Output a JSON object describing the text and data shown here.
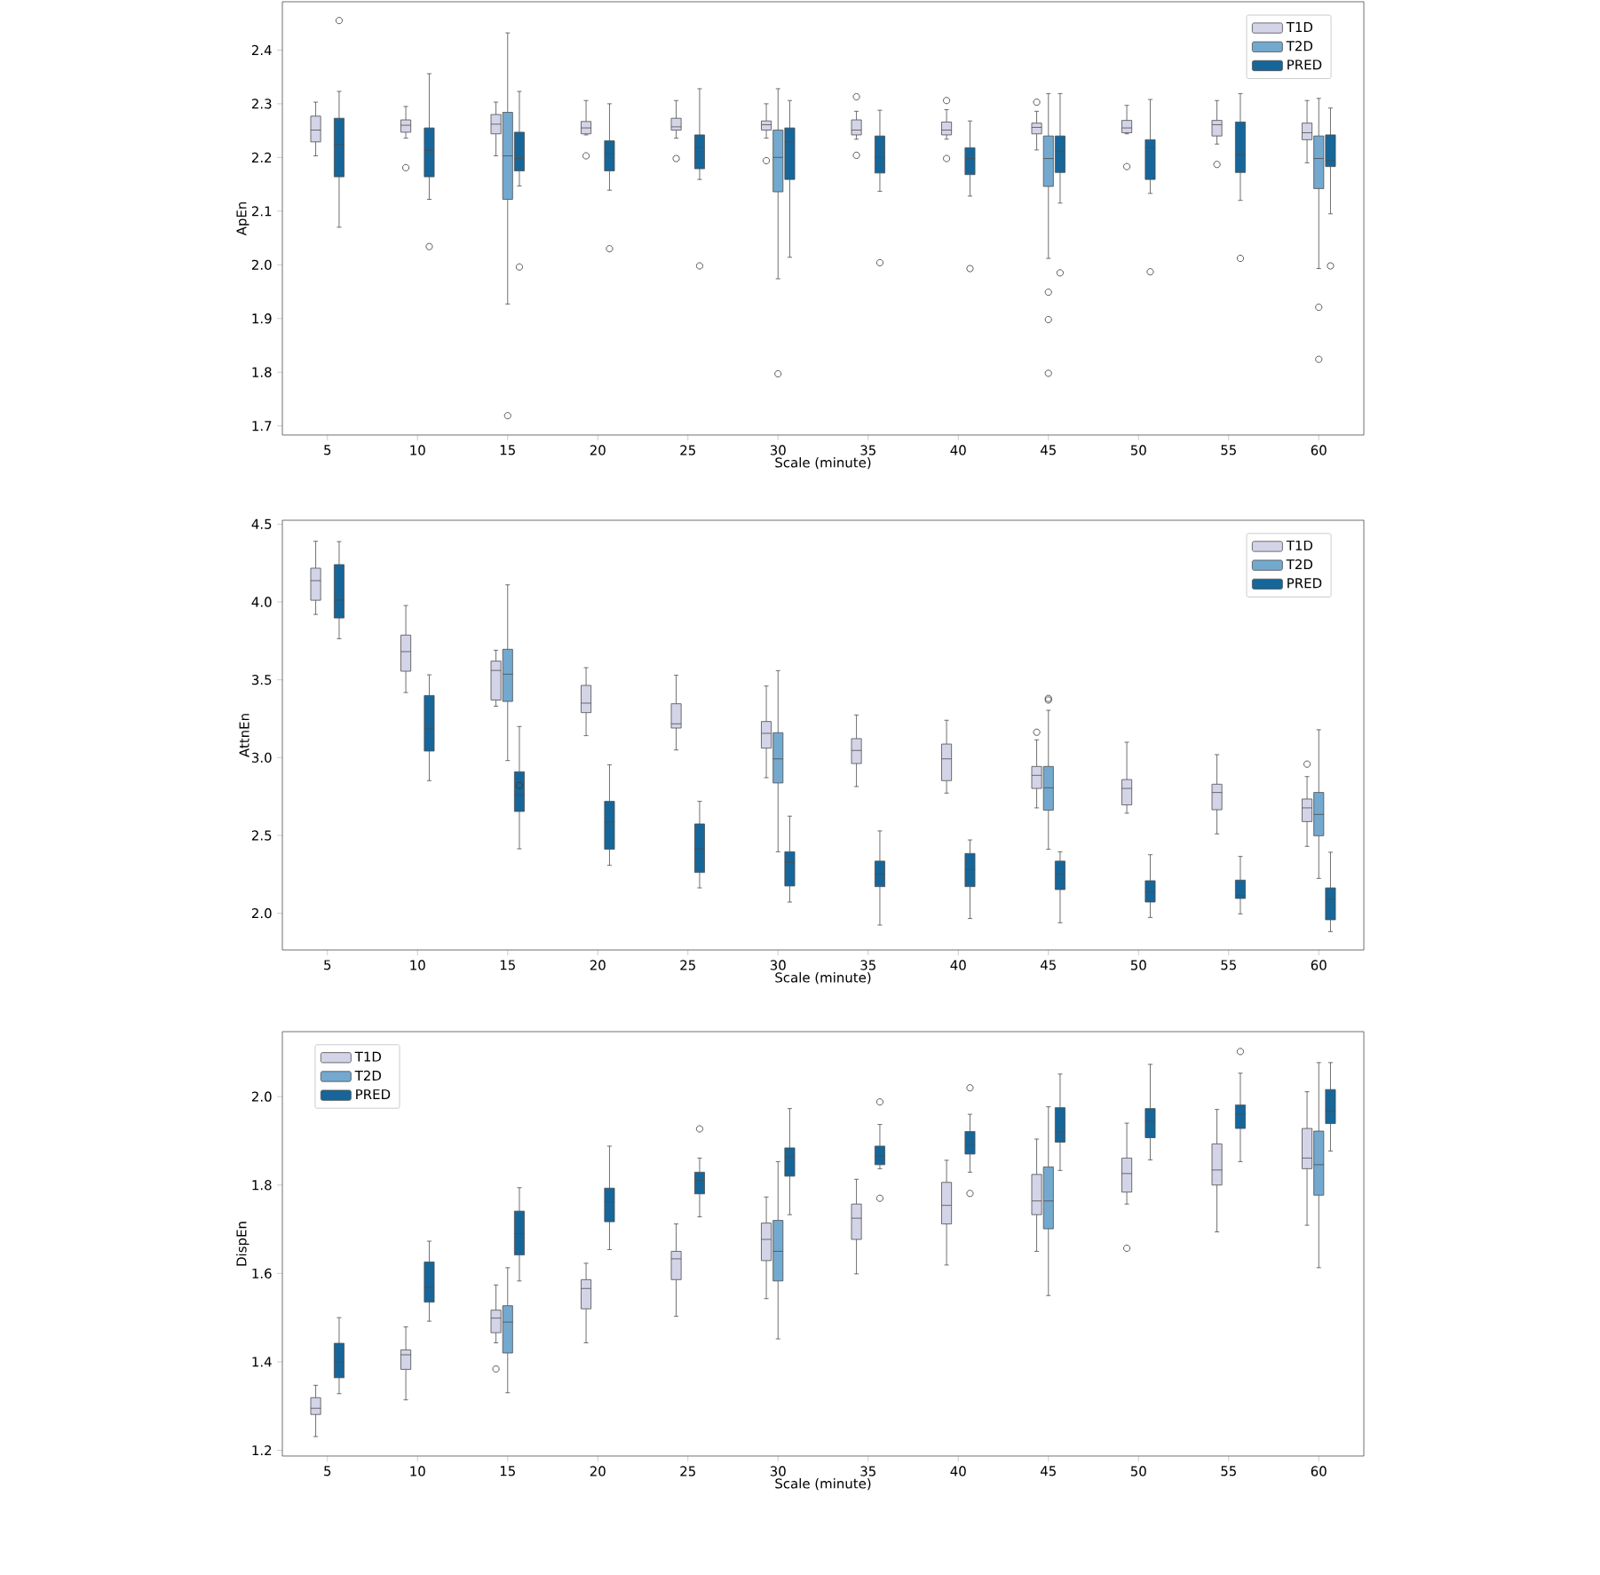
{
  "chart_data": [
    {
      "type": "box",
      "xlabel": "Scale (minute)",
      "ylabel": "ApEn",
      "legend": "top right",
      "categories": [
        "5",
        "10",
        "15",
        "20",
        "25",
        "30",
        "35",
        "40",
        "45",
        "50",
        "55",
        "60"
      ],
      "ylim": [
        1.683,
        2.49
      ],
      "yticks": [
        1.7,
        1.8,
        1.9,
        {
          "value": 2.0,
          "label": "2.0"
        },
        2.1,
        2.2,
        2.3,
        2.4
      ],
      "series": [
        {
          "name": "T1D",
          "color": "#d4d4e8",
          "boxes": [
            {
              "low": 2.203,
              "q1": 2.229,
              "median": 2.251,
              "q3": 2.277,
              "high": 2.303
            },
            {
              "low": 2.236,
              "q1": 2.247,
              "median": 2.26,
              "q3": 2.27,
              "high": 2.295,
              "outliers": [
                2.181
              ]
            },
            {
              "low": 2.203,
              "q1": 2.244,
              "median": 2.262,
              "q3": 2.28,
              "high": 2.303
            },
            {
              "low": 2.242,
              "q1": 2.244,
              "median": 2.255,
              "q3": 2.267,
              "high": 2.306,
              "outliers": [
                2.203
              ]
            },
            {
              "low": 2.236,
              "q1": 2.251,
              "median": 2.257,
              "q3": 2.273,
              "high": 2.306,
              "outliers": [
                2.198
              ]
            },
            {
              "low": 2.236,
              "q1": 2.251,
              "median": 2.261,
              "q3": 2.268,
              "high": 2.3,
              "outliers": [
                2.194
              ]
            },
            {
              "low": 2.234,
              "q1": 2.242,
              "median": 2.251,
              "q3": 2.27,
              "high": 2.286,
              "outliers": [
                2.313,
                2.204
              ]
            },
            {
              "low": 2.234,
              "q1": 2.242,
              "median": 2.251,
              "q3": 2.266,
              "high": 2.289,
              "outliers": [
                2.306,
                2.198
              ]
            },
            {
              "low": 2.214,
              "q1": 2.244,
              "median": 2.256,
              "q3": 2.264,
              "high": 2.286,
              "outliers": [
                2.303
              ]
            },
            {
              "low": 2.244,
              "q1": 2.246,
              "median": 2.255,
              "q3": 2.269,
              "high": 2.297,
              "outliers": [
                2.183
              ]
            },
            {
              "low": 2.225,
              "q1": 2.24,
              "median": 2.261,
              "q3": 2.269,
              "high": 2.306,
              "outliers": [
                2.187
              ]
            },
            {
              "low": 2.19,
              "q1": 2.233,
              "median": 2.246,
              "q3": 2.264,
              "high": 2.306
            }
          ]
        },
        {
          "name": "T2D",
          "color": "#74a9cf",
          "boxes": [
            null,
            null,
            {
              "low": 1.927,
              "q1": 2.122,
              "median": 2.203,
              "q3": 2.284,
              "high": 2.432,
              "outliers": [
                1.719
              ]
            },
            null,
            null,
            {
              "low": 1.974,
              "q1": 2.136,
              "median": 2.2,
              "q3": 2.251,
              "high": 2.328,
              "outliers": [
                1.797
              ]
            },
            null,
            null,
            {
              "low": 2.012,
              "q1": 2.146,
              "median": 2.198,
              "q3": 2.24,
              "high": 2.319,
              "outliers": [
                1.949,
                1.898,
                1.798
              ]
            },
            null,
            null,
            {
              "low": 1.993,
              "q1": 2.142,
              "median": 2.198,
              "q3": 2.24,
              "high": 2.31,
              "outliers": [
                1.921,
                1.824
              ]
            }
          ]
        },
        {
          "name": "PRED",
          "color": "#16669a",
          "boxes": [
            {
              "low": 2.07,
              "q1": 2.164,
              "median": 2.224,
              "q3": 2.273,
              "high": 2.323,
              "outliers": [
                2.455
              ]
            },
            {
              "low": 2.122,
              "q1": 2.164,
              "median": 2.213,
              "q3": 2.255,
              "high": 2.356,
              "outliers": [
                2.034
              ]
            },
            {
              "low": 2.147,
              "q1": 2.175,
              "median": 2.198,
              "q3": 2.247,
              "high": 2.323,
              "outliers": [
                1.996
              ]
            },
            {
              "low": 2.139,
              "q1": 2.175,
              "median": 2.207,
              "q3": 2.231,
              "high": 2.3,
              "outliers": [
                2.03
              ]
            },
            {
              "low": 2.159,
              "q1": 2.179,
              "median": 2.218,
              "q3": 2.242,
              "high": 2.328,
              "outliers": [
                1.998
              ]
            },
            {
              "low": 2.014,
              "q1": 2.159,
              "median": 2.229,
              "q3": 2.255,
              "high": 2.306
            },
            {
              "low": 2.137,
              "q1": 2.171,
              "median": 2.2,
              "q3": 2.24,
              "high": 2.288,
              "outliers": [
                2.004
              ]
            },
            {
              "low": 2.128,
              "q1": 2.168,
              "median": 2.198,
              "q3": 2.218,
              "high": 2.268,
              "outliers": [
                1.993
              ]
            },
            {
              "low": 2.115,
              "q1": 2.172,
              "median": 2.212,
              "q3": 2.24,
              "high": 2.319,
              "outliers": [
                1.985
              ]
            },
            {
              "low": 2.133,
              "q1": 2.159,
              "median": 2.218,
              "q3": 2.233,
              "high": 2.308,
              "outliers": [
                1.987
              ]
            },
            {
              "low": 2.12,
              "q1": 2.172,
              "median": 2.205,
              "q3": 2.266,
              "high": 2.319,
              "outliers": [
                2.012
              ]
            },
            {
              "low": 2.095,
              "q1": 2.183,
              "median": 2.194,
              "q3": 2.242,
              "high": 2.292,
              "outliers": [
                1.998
              ]
            }
          ]
        }
      ]
    },
    {
      "type": "box",
      "xlabel": "Scale (minute)",
      "ylabel": "AttnEn",
      "legend": "top right",
      "categories": [
        "5",
        "10",
        "15",
        "20",
        "25",
        "30",
        "35",
        "40",
        "45",
        "50",
        "55",
        "60"
      ],
      "ylim": [
        1.764,
        4.525
      ],
      "yticks": [
        {
          "value": 2.0,
          "label": "2.0"
        },
        2.5,
        {
          "value": 3.0,
          "label": "3.0"
        },
        3.5,
        {
          "value": 4.0,
          "label": "4.0"
        },
        4.5
      ],
      "series": [
        {
          "name": "T1D",
          "color": "#d4d4e8",
          "boxes": [
            {
              "low": 3.92,
              "q1": 4.011,
              "median": 4.137,
              "q3": 4.217,
              "high": 4.39
            },
            {
              "low": 3.418,
              "q1": 3.555,
              "median": 3.681,
              "q3": 3.787,
              "high": 3.977
            },
            {
              "low": 3.33,
              "q1": 3.37,
              "median": 3.56,
              "q3": 3.62,
              "high": 3.69
            },
            {
              "low": 3.141,
              "q1": 3.289,
              "median": 3.35,
              "q3": 3.464,
              "high": 3.578
            },
            {
              "low": 3.049,
              "q1": 3.19,
              "median": 3.217,
              "q3": 3.346,
              "high": 3.529
            },
            {
              "low": 2.871,
              "q1": 3.061,
              "median": 3.156,
              "q3": 3.232,
              "high": 3.46
            },
            {
              "low": 2.814,
              "q1": 2.962,
              "median": 3.046,
              "q3": 3.122,
              "high": 3.274
            },
            {
              "low": 2.772,
              "q1": 2.852,
              "median": 2.992,
              "q3": 3.087,
              "high": 3.24
            },
            {
              "low": 2.677,
              "q1": 2.802,
              "median": 2.886,
              "q3": 2.943,
              "high": 3.114,
              "outliers": [
                3.163
              ]
            },
            {
              "low": 2.643,
              "q1": 2.696,
              "median": 2.802,
              "q3": 2.859,
              "high": 3.099
            },
            {
              "low": 2.51,
              "q1": 2.665,
              "median": 2.776,
              "q3": 2.829,
              "high": 3.019
            },
            {
              "low": 2.43,
              "q1": 2.589,
              "median": 2.677,
              "q3": 2.734,
              "high": 2.878,
              "outliers": [
                2.958
              ]
            }
          ]
        },
        {
          "name": "T2D",
          "color": "#74a9cf",
          "boxes": [
            null,
            null,
            {
              "low": 2.981,
              "q1": 3.361,
              "median": 3.536,
              "q3": 3.696,
              "high": 4.11
            },
            null,
            null,
            {
              "low": 2.395,
              "q1": 2.837,
              "median": 2.992,
              "q3": 3.16,
              "high": 3.559
            },
            null,
            null,
            {
              "low": 2.411,
              "q1": 2.662,
              "median": 2.806,
              "q3": 2.943,
              "high": 3.304,
              "outliers": [
                3.37,
                3.38
              ]
            },
            null,
            null,
            {
              "low": 2.224,
              "q1": 2.498,
              "median": 2.635,
              "q3": 2.776,
              "high": 3.179
            }
          ]
        },
        {
          "name": "PRED",
          "color": "#16669a",
          "boxes": [
            {
              "low": 3.764,
              "q1": 3.897,
              "median": 4.011,
              "q3": 4.24,
              "high": 4.388
            },
            {
              "low": 2.852,
              "q1": 3.042,
              "median": 3.186,
              "q3": 3.399,
              "high": 3.532
            },
            {
              "low": 2.414,
              "q1": 2.654,
              "median": 2.76,
              "q3": 2.909,
              "high": 3.2,
              "outliers": [
                2.821
              ]
            },
            {
              "low": 2.308,
              "q1": 2.411,
              "median": 2.586,
              "q3": 2.719,
              "high": 2.954
            },
            {
              "low": 2.163,
              "q1": 2.262,
              "median": 2.414,
              "q3": 2.574,
              "high": 2.719
            },
            {
              "low": 2.072,
              "q1": 2.175,
              "median": 2.327,
              "q3": 2.395,
              "high": 2.624
            },
            {
              "low": 1.924,
              "q1": 2.171,
              "median": 2.251,
              "q3": 2.335,
              "high": 2.529
            },
            {
              "low": 1.966,
              "q1": 2.171,
              "median": 2.281,
              "q3": 2.384,
              "high": 2.471
            },
            {
              "low": 1.939,
              "q1": 2.152,
              "median": 2.251,
              "q3": 2.335,
              "high": 2.395
            },
            {
              "low": 1.973,
              "q1": 2.072,
              "median": 2.137,
              "q3": 2.209,
              "high": 2.376
            },
            {
              "low": 1.996,
              "q1": 2.095,
              "median": 2.114,
              "q3": 2.213,
              "high": 2.365
            },
            {
              "low": 1.882,
              "q1": 1.958,
              "median": 2.091,
              "q3": 2.163,
              "high": 2.392
            }
          ]
        }
      ]
    },
    {
      "type": "box",
      "xlabel": "Scale (minute)",
      "ylabel": "DispEn",
      "legend": "top left",
      "categories": [
        "5",
        "10",
        "15",
        "20",
        "25",
        "30",
        "35",
        "40",
        "45",
        "50",
        "55",
        "60"
      ],
      "ylim": [
        1.187,
        2.147
      ],
      "yticks": [
        1.2,
        1.4,
        1.6,
        1.8,
        {
          "value": 2.0,
          "label": "2.0"
        }
      ],
      "series": [
        {
          "name": "T1D",
          "color": "#d4d4e8",
          "boxes": [
            {
              "low": 1.231,
              "q1": 1.281,
              "median": 1.295,
              "q3": 1.319,
              "high": 1.347
            },
            {
              "low": 1.314,
              "q1": 1.383,
              "median": 1.416,
              "q3": 1.427,
              "high": 1.479
            },
            {
              "low": 1.443,
              "q1": 1.466,
              "median": 1.499,
              "q3": 1.517,
              "high": 1.574,
              "outliers": [
                1.384
              ]
            },
            {
              "low": 1.443,
              "q1": 1.52,
              "median": 1.566,
              "q3": 1.586,
              "high": 1.623
            },
            {
              "low": 1.503,
              "q1": 1.586,
              "median": 1.633,
              "q3": 1.65,
              "high": 1.712
            },
            {
              "low": 1.543,
              "q1": 1.629,
              "median": 1.677,
              "q3": 1.714,
              "high": 1.773
            },
            {
              "low": 1.599,
              "q1": 1.677,
              "median": 1.725,
              "q3": 1.757,
              "high": 1.813
            },
            {
              "low": 1.619,
              "q1": 1.712,
              "median": 1.754,
              "q3": 1.806,
              "high": 1.856
            },
            {
              "low": 1.65,
              "q1": 1.733,
              "median": 1.764,
              "q3": 1.824,
              "high": 1.904
            },
            {
              "low": 1.757,
              "q1": 1.784,
              "median": 1.826,
              "q3": 1.861,
              "high": 1.94,
              "outliers": [
                1.657
              ]
            },
            {
              "low": 1.694,
              "q1": 1.8,
              "median": 1.834,
              "q3": 1.893,
              "high": 1.971
            },
            {
              "low": 1.709,
              "q1": 1.837,
              "median": 1.861,
              "q3": 1.928,
              "high": 2.011
            }
          ]
        },
        {
          "name": "T2D",
          "color": "#74a9cf",
          "boxes": [
            null,
            null,
            {
              "low": 1.33,
              "q1": 1.42,
              "median": 1.49,
              "q3": 1.527,
              "high": 1.613
            },
            null,
            null,
            {
              "low": 1.452,
              "q1": 1.583,
              "median": 1.65,
              "q3": 1.72,
              "high": 1.853
            },
            null,
            null,
            {
              "low": 1.55,
              "q1": 1.701,
              "median": 1.764,
              "q3": 1.841,
              "high": 1.977
            },
            null,
            null,
            {
              "low": 1.613,
              "q1": 1.777,
              "median": 1.846,
              "q3": 1.922,
              "high": 2.077
            }
          ]
        },
        {
          "name": "PRED",
          "color": "#16669a",
          "boxes": [
            {
              "low": 1.328,
              "q1": 1.364,
              "median": 1.4,
              "q3": 1.442,
              "high": 1.5
            },
            {
              "low": 1.492,
              "q1": 1.535,
              "median": 1.569,
              "q3": 1.626,
              "high": 1.673
            },
            {
              "low": 1.583,
              "q1": 1.642,
              "median": 1.69,
              "q3": 1.741,
              "high": 1.794
            },
            {
              "low": 1.654,
              "q1": 1.717,
              "median": 1.762,
              "q3": 1.793,
              "high": 1.888
            },
            {
              "low": 1.728,
              "q1": 1.78,
              "median": 1.81,
              "q3": 1.829,
              "high": 1.861,
              "outliers": [
                1.927
              ]
            },
            {
              "low": 1.733,
              "q1": 1.82,
              "median": 1.864,
              "q3": 1.884,
              "high": 1.973
            },
            {
              "low": 1.837,
              "q1": 1.846,
              "median": 1.866,
              "q3": 1.888,
              "high": 1.937,
              "outliers": [
                1.988,
                1.77
              ]
            },
            {
              "low": 1.829,
              "q1": 1.87,
              "median": 1.89,
              "q3": 1.921,
              "high": 1.96,
              "outliers": [
                2.02,
                1.781
              ]
            },
            {
              "low": 1.833,
              "q1": 1.897,
              "median": 1.92,
              "q3": 1.975,
              "high": 2.051
            },
            {
              "low": 1.857,
              "q1": 1.907,
              "median": 1.944,
              "q3": 1.973,
              "high": 2.073
            },
            {
              "low": 1.853,
              "q1": 1.928,
              "median": 1.961,
              "q3": 1.981,
              "high": 2.053,
              "outliers": [
                2.102
              ]
            },
            {
              "low": 1.877,
              "q1": 1.939,
              "median": 1.967,
              "q3": 2.016,
              "high": 2.077
            }
          ]
        }
      ]
    }
  ]
}
